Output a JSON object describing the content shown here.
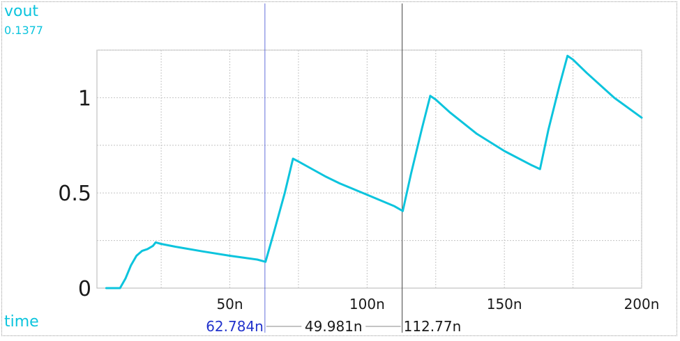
{
  "signal": {
    "name": "vout",
    "cursor_value": "0.1377",
    "color": "#0cc4dd"
  },
  "x_axis": {
    "name": "time"
  },
  "cursors": {
    "a": {
      "time": 62.784,
      "label": "62.784n",
      "color": "#2233cc"
    },
    "b": {
      "time": 112.77,
      "label": "112.77n",
      "color": "#444444"
    },
    "delta_label": "49.981n"
  },
  "chart_data": {
    "type": "line",
    "xlim": [
      1.6,
      200
    ],
    "ylim": [
      0,
      1.25
    ],
    "grid": true,
    "x_ticks": [
      {
        "value": 50,
        "label": "50n"
      },
      {
        "value": 100,
        "label": "100n"
      },
      {
        "value": 150,
        "label": "150n"
      },
      {
        "value": 200,
        "label": "200n"
      }
    ],
    "y_ticks": [
      {
        "value": 0,
        "label": "0"
      },
      {
        "value": 0.5,
        "label": "0.5"
      },
      {
        "value": 1,
        "label": "1"
      }
    ],
    "y_minor_grid": [
      0.25,
      0.75,
      1.25
    ],
    "series": [
      {
        "name": "vout",
        "color": "#0cc4dd",
        "x": [
          5,
          10,
          12,
          14,
          16,
          18,
          20,
          22,
          23,
          25,
          30,
          40,
          50,
          60,
          63,
          66,
          70,
          73,
          75,
          80,
          85,
          90,
          100,
          110,
          113,
          116,
          120,
          123,
          125,
          130,
          140,
          150,
          160,
          163,
          166,
          170,
          173,
          175,
          180,
          190,
          200
        ],
        "y": [
          0,
          0,
          0.05,
          0.12,
          0.17,
          0.195,
          0.205,
          0.222,
          0.24,
          0.232,
          0.218,
          0.193,
          0.17,
          0.15,
          0.138,
          0.29,
          0.5,
          0.68,
          0.665,
          0.625,
          0.585,
          0.55,
          0.49,
          0.43,
          0.405,
          0.6,
          0.84,
          1.01,
          0.99,
          0.925,
          0.81,
          0.72,
          0.645,
          0.625,
          0.83,
          1.06,
          1.22,
          1.2,
          1.13,
          1.0,
          0.895
        ]
      }
    ]
  }
}
